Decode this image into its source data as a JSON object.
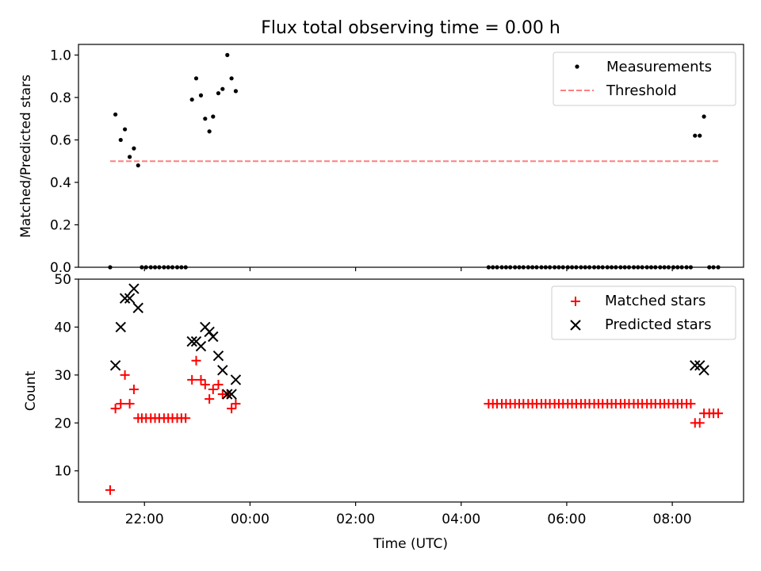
{
  "title": "Flux total observing time = 0.00 h",
  "chart_data": [
    {
      "type": "scatter",
      "ylabel": "Matched/Predicted stars",
      "xlabel": "",
      "xlim_hours": [
        20.75,
        33.35
      ],
      "ylim": [
        0,
        1.05
      ],
      "yticks": [
        0.0,
        0.2,
        0.4,
        0.6,
        0.8,
        1.0
      ],
      "ytick_labels": [
        "0.0",
        "0.2",
        "0.4",
        "0.6",
        "0.8",
        "1.0"
      ],
      "legend_position": "top-right",
      "series": [
        {
          "name": "Measurements",
          "marker": "dot",
          "color": "#000000",
          "points": [
            [
              21.35,
              0.0
            ],
            [
              21.45,
              0.72
            ],
            [
              21.55,
              0.6
            ],
            [
              21.63,
              0.65
            ],
            [
              21.72,
              0.52
            ],
            [
              21.8,
              0.56
            ],
            [
              21.88,
              0.48
            ],
            [
              21.95,
              0.0
            ],
            [
              22.03,
              0.0
            ],
            [
              22.12,
              0.0
            ],
            [
              22.2,
              0.0
            ],
            [
              22.28,
              0.0
            ],
            [
              22.37,
              0.0
            ],
            [
              22.45,
              0.0
            ],
            [
              22.53,
              0.0
            ],
            [
              22.62,
              0.0
            ],
            [
              22.7,
              0.0
            ],
            [
              22.78,
              0.0
            ],
            [
              22.9,
              0.79
            ],
            [
              22.98,
              0.89
            ],
            [
              23.07,
              0.81
            ],
            [
              23.15,
              0.7
            ],
            [
              23.23,
              0.64
            ],
            [
              23.3,
              0.71
            ],
            [
              23.4,
              0.82
            ],
            [
              23.48,
              0.84
            ],
            [
              23.57,
              1.0
            ],
            [
              23.65,
              0.89
            ],
            [
              23.73,
              0.83
            ],
            [
              28.52,
              0.0
            ],
            [
              28.6,
              0.0
            ],
            [
              28.68,
              0.0
            ],
            [
              28.77,
              0.0
            ],
            [
              28.85,
              0.0
            ],
            [
              28.93,
              0.0
            ],
            [
              29.02,
              0.0
            ],
            [
              29.1,
              0.0
            ],
            [
              29.18,
              0.0
            ],
            [
              29.27,
              0.0
            ],
            [
              29.35,
              0.0
            ],
            [
              29.43,
              0.0
            ],
            [
              29.52,
              0.0
            ],
            [
              29.6,
              0.0
            ],
            [
              29.68,
              0.0
            ],
            [
              29.77,
              0.0
            ],
            [
              29.85,
              0.0
            ],
            [
              29.93,
              0.0
            ],
            [
              30.02,
              0.0
            ],
            [
              30.1,
              0.0
            ],
            [
              30.18,
              0.0
            ],
            [
              30.27,
              0.0
            ],
            [
              30.35,
              0.0
            ],
            [
              30.43,
              0.0
            ],
            [
              30.52,
              0.0
            ],
            [
              30.6,
              0.0
            ],
            [
              30.68,
              0.0
            ],
            [
              30.77,
              0.0
            ],
            [
              30.85,
              0.0
            ],
            [
              30.93,
              0.0
            ],
            [
              31.02,
              0.0
            ],
            [
              31.1,
              0.0
            ],
            [
              31.18,
              0.0
            ],
            [
              31.27,
              0.0
            ],
            [
              31.35,
              0.0
            ],
            [
              31.43,
              0.0
            ],
            [
              31.52,
              0.0
            ],
            [
              31.6,
              0.0
            ],
            [
              31.68,
              0.0
            ],
            [
              31.77,
              0.0
            ],
            [
              31.85,
              0.0
            ],
            [
              31.93,
              0.0
            ],
            [
              32.02,
              0.0
            ],
            [
              32.1,
              0.0
            ],
            [
              32.18,
              0.0
            ],
            [
              32.27,
              0.0
            ],
            [
              32.35,
              0.0
            ],
            [
              32.43,
              0.62
            ],
            [
              32.52,
              0.62
            ],
            [
              32.6,
              0.71
            ],
            [
              32.7,
              0.0
            ],
            [
              32.78,
              0.0
            ],
            [
              32.87,
              0.0
            ]
          ]
        },
        {
          "name": "Threshold",
          "marker": "dashed-line",
          "color": "#ff7f7f",
          "points": [
            [
              21.35,
              0.5
            ],
            [
              32.87,
              0.5
            ]
          ]
        }
      ]
    },
    {
      "type": "scatter",
      "ylabel": "Count",
      "xlabel": "Time (UTC)",
      "xlim_hours": [
        20.75,
        33.35
      ],
      "ylim": [
        3.5,
        50
      ],
      "yticks": [
        10,
        20,
        30,
        40,
        50
      ],
      "ytick_labels": [
        "10",
        "20",
        "30",
        "40",
        "50"
      ],
      "xticks_hours": [
        22,
        24,
        26,
        28,
        30,
        32
      ],
      "xtick_labels": [
        "22:00",
        "00:00",
        "02:00",
        "04:00",
        "06:00",
        "08:00"
      ],
      "legend_position": "top-right",
      "series": [
        {
          "name": "Matched stars",
          "marker": "plus",
          "color": "#ff0000",
          "points": [
            [
              21.35,
              6
            ],
            [
              21.45,
              23
            ],
            [
              21.55,
              24
            ],
            [
              21.63,
              30
            ],
            [
              21.72,
              24
            ],
            [
              21.8,
              27
            ],
            [
              21.88,
              21
            ],
            [
              21.95,
              21
            ],
            [
              22.03,
              21
            ],
            [
              22.12,
              21
            ],
            [
              22.2,
              21
            ],
            [
              22.28,
              21
            ],
            [
              22.37,
              21
            ],
            [
              22.45,
              21
            ],
            [
              22.53,
              21
            ],
            [
              22.62,
              21
            ],
            [
              22.7,
              21
            ],
            [
              22.78,
              21
            ],
            [
              22.9,
              29
            ],
            [
              22.98,
              33
            ],
            [
              23.07,
              29
            ],
            [
              23.15,
              28
            ],
            [
              23.23,
              25
            ],
            [
              23.3,
              27
            ],
            [
              23.4,
              28
            ],
            [
              23.48,
              26
            ],
            [
              23.57,
              26
            ],
            [
              23.65,
              23
            ],
            [
              23.73,
              24
            ],
            [
              28.52,
              24
            ],
            [
              28.6,
              24
            ],
            [
              28.68,
              24
            ],
            [
              28.77,
              24
            ],
            [
              28.85,
              24
            ],
            [
              28.93,
              24
            ],
            [
              29.02,
              24
            ],
            [
              29.1,
              24
            ],
            [
              29.18,
              24
            ],
            [
              29.27,
              24
            ],
            [
              29.35,
              24
            ],
            [
              29.43,
              24
            ],
            [
              29.52,
              24
            ],
            [
              29.6,
              24
            ],
            [
              29.68,
              24
            ],
            [
              29.77,
              24
            ],
            [
              29.85,
              24
            ],
            [
              29.93,
              24
            ],
            [
              30.02,
              24
            ],
            [
              30.1,
              24
            ],
            [
              30.18,
              24
            ],
            [
              30.27,
              24
            ],
            [
              30.35,
              24
            ],
            [
              30.43,
              24
            ],
            [
              30.52,
              24
            ],
            [
              30.6,
              24
            ],
            [
              30.68,
              24
            ],
            [
              30.77,
              24
            ],
            [
              30.85,
              24
            ],
            [
              30.93,
              24
            ],
            [
              31.02,
              24
            ],
            [
              31.1,
              24
            ],
            [
              31.18,
              24
            ],
            [
              31.27,
              24
            ],
            [
              31.35,
              24
            ],
            [
              31.43,
              24
            ],
            [
              31.52,
              24
            ],
            [
              31.6,
              24
            ],
            [
              31.68,
              24
            ],
            [
              31.77,
              24
            ],
            [
              31.85,
              24
            ],
            [
              31.93,
              24
            ],
            [
              32.02,
              24
            ],
            [
              32.1,
              24
            ],
            [
              32.18,
              24
            ],
            [
              32.27,
              24
            ],
            [
              32.35,
              24
            ],
            [
              32.43,
              20
            ],
            [
              32.52,
              20
            ],
            [
              32.6,
              22
            ],
            [
              32.7,
              22
            ],
            [
              32.78,
              22
            ],
            [
              32.87,
              22
            ]
          ]
        },
        {
          "name": "Predicted stars",
          "marker": "x",
          "color": "#000000",
          "points": [
            [
              21.45,
              32
            ],
            [
              21.55,
              40
            ],
            [
              21.63,
              46
            ],
            [
              21.72,
              46
            ],
            [
              21.8,
              48
            ],
            [
              21.88,
              44
            ],
            [
              22.9,
              37
            ],
            [
              22.98,
              37
            ],
            [
              23.07,
              36
            ],
            [
              23.15,
              40
            ],
            [
              23.23,
              39
            ],
            [
              23.3,
              38
            ],
            [
              23.4,
              34
            ],
            [
              23.48,
              31
            ],
            [
              23.57,
              26
            ],
            [
              23.65,
              26
            ],
            [
              23.73,
              29
            ],
            [
              32.43,
              32
            ],
            [
              32.52,
              32
            ],
            [
              32.6,
              31
            ]
          ]
        }
      ]
    }
  ]
}
